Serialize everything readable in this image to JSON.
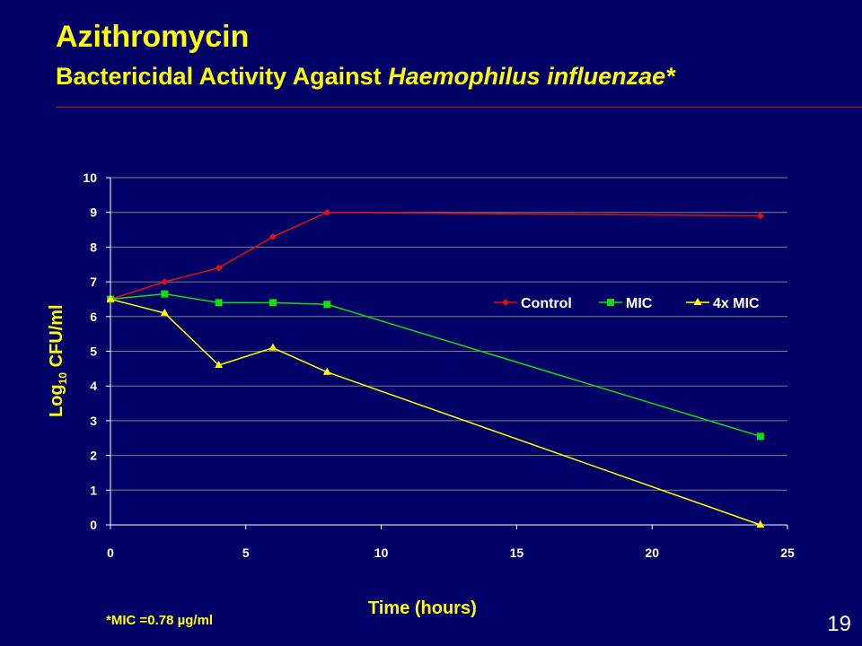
{
  "slide": {
    "title": "Azithromycin",
    "subtitle_main": "Bactericidal Activity Against ",
    "subtitle_organism": "Haemophilus influenzae*",
    "footnote": "*MIC =0.78 µg/ml",
    "page_number": "19"
  },
  "colors": {
    "background": "#000066",
    "title": "#ffff00",
    "rule": "#cc1111"
  },
  "chart_data": {
    "type": "line",
    "xlabel": "Time (hours)",
    "ylabel_prefix": "Log",
    "ylabel_sub": "10",
    "ylabel_suffix": " CFU/ml",
    "xlim": [
      0,
      25
    ],
    "ylim": [
      0,
      10
    ],
    "xticks": [
      0,
      5,
      10,
      15,
      20,
      25
    ],
    "yticks": [
      0,
      1,
      2,
      3,
      4,
      5,
      6,
      7,
      8,
      9,
      10
    ],
    "grid": "horizontal",
    "legend_position": "center-right",
    "series": [
      {
        "name": "Control",
        "color": "#dd1111",
        "marker": "diamond",
        "x": [
          0,
          2,
          4,
          6,
          8,
          24
        ],
        "y": [
          6.5,
          7.0,
          7.4,
          8.3,
          9.0,
          8.9
        ]
      },
      {
        "name": "MIC",
        "color": "#11dd11",
        "marker": "square",
        "x": [
          0,
          2,
          4,
          6,
          8,
          24
        ],
        "y": [
          6.5,
          6.65,
          6.4,
          6.4,
          6.35,
          2.55
        ]
      },
      {
        "name": "4x MIC",
        "color": "#ffff00",
        "marker": "triangle",
        "x": [
          0,
          2,
          4,
          6,
          8,
          24
        ],
        "y": [
          6.5,
          6.1,
          4.6,
          5.1,
          4.4,
          0.0
        ]
      }
    ]
  }
}
